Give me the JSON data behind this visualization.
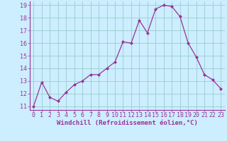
{
  "x": [
    0,
    1,
    2,
    3,
    4,
    5,
    6,
    7,
    8,
    9,
    10,
    11,
    12,
    13,
    14,
    15,
    16,
    17,
    18,
    19,
    20,
    21,
    22,
    23
  ],
  "y": [
    11.0,
    12.9,
    11.7,
    11.4,
    12.1,
    12.7,
    13.0,
    13.5,
    13.5,
    14.0,
    14.5,
    16.1,
    16.0,
    17.8,
    16.8,
    18.7,
    19.0,
    18.9,
    18.1,
    16.0,
    14.9,
    13.5,
    13.1,
    12.4
  ],
  "line_color": "#993399",
  "marker": "D",
  "marker_size": 2.0,
  "bg_color": "#cceeff",
  "grid_color": "#99cccc",
  "xlabel": "Windchill (Refroidissement éolien,°C)",
  "ylabel": "",
  "ylim": [
    10.7,
    19.3
  ],
  "xlim": [
    -0.5,
    23.5
  ],
  "yticks": [
    11,
    12,
    13,
    14,
    15,
    16,
    17,
    18,
    19
  ],
  "xticks": [
    0,
    1,
    2,
    3,
    4,
    5,
    6,
    7,
    8,
    9,
    10,
    11,
    12,
    13,
    14,
    15,
    16,
    17,
    18,
    19,
    20,
    21,
    22,
    23
  ],
  "axis_color": "#993399",
  "font_size_label": 6.5,
  "font_size_tick": 6.0,
  "line_width": 0.9
}
